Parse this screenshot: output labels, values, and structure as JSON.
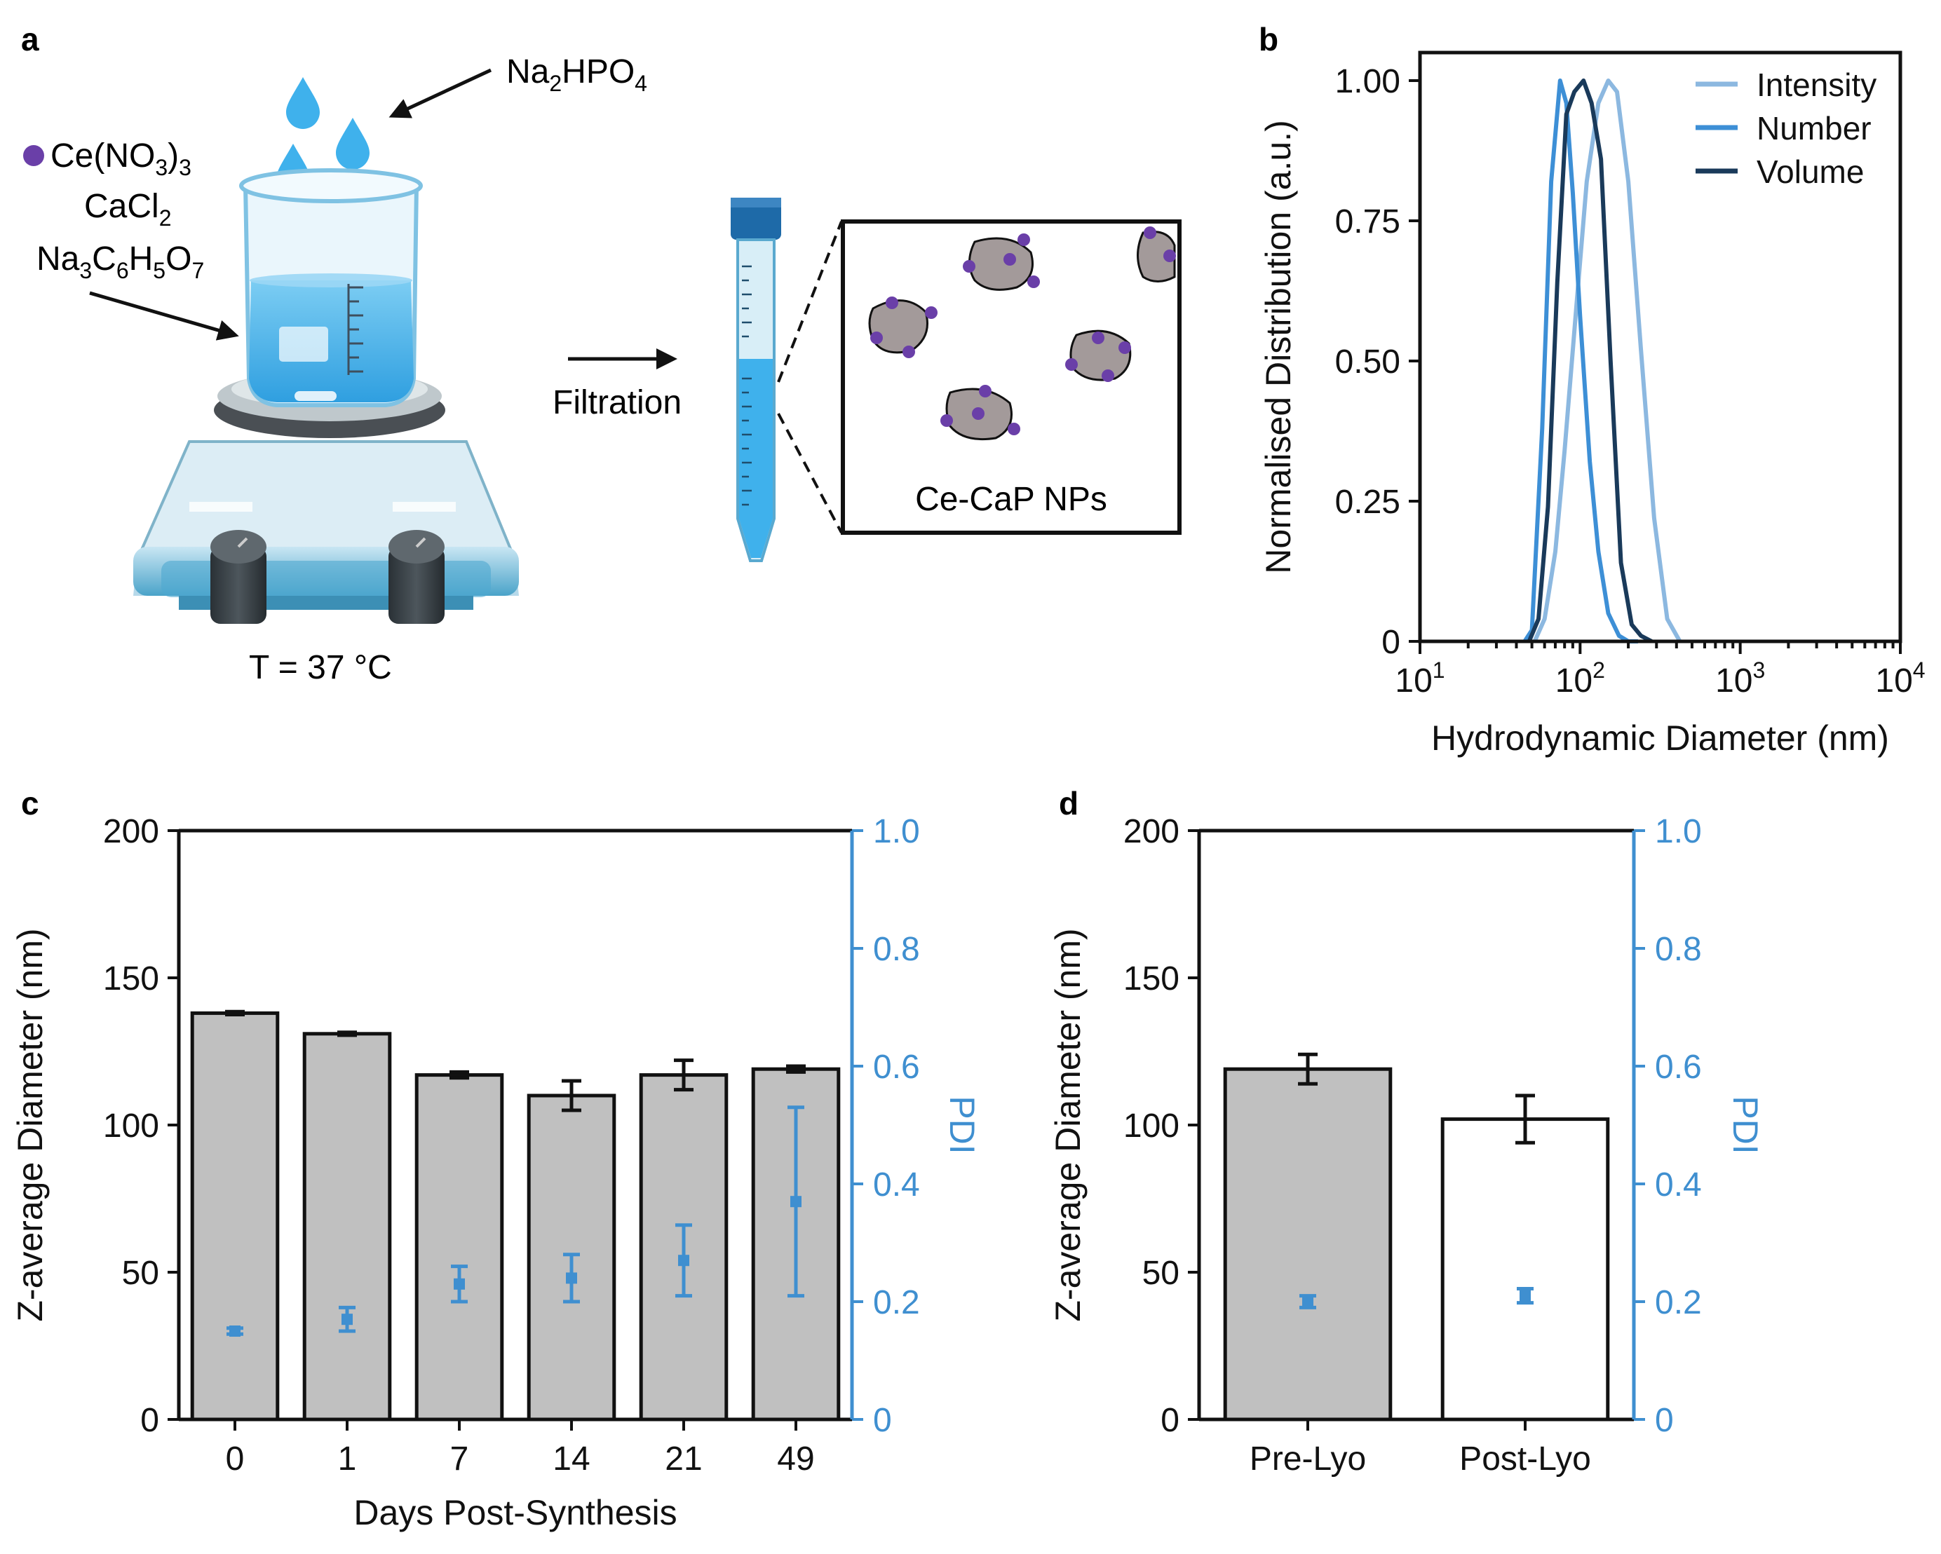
{
  "panels": {
    "a": {
      "label": "a",
      "reagent_top": {
        "base": "Na",
        "sub1": "2",
        "mid": "HPO",
        "sub2": "4"
      },
      "reagent_ce": {
        "base": "Ce(NO",
        "sub1": "3",
        "mid": ")",
        "sub2": "3"
      },
      "reagent_ca": {
        "base": "CaCl",
        "sub1": "2"
      },
      "reagent_cit": {
        "p1": "Na",
        "s1": "3",
        "p2": "C",
        "s2": "6",
        "p3": "H",
        "s3": "5",
        "p4": "O",
        "s4": "7"
      },
      "filtration_label": "Filtration",
      "temperature_label": "T = 37 °C",
      "nps_label": "Ce-CaP NPs"
    },
    "b": {
      "label": "b"
    },
    "c": {
      "label": "c"
    },
    "d": {
      "label": "d"
    }
  },
  "colors": {
    "intensity": "#8cb8e0",
    "number": "#3d8fd6",
    "volume": "#1a3a5a",
    "pdi_axis": "#3f8fd0",
    "bar_gray": "#c0c0c0",
    "liquid": "#3fb1ec",
    "particle": "#a39a9a",
    "dot": "#6a3fa8"
  },
  "chart_data": [
    {
      "id": "b",
      "type": "line",
      "title": "",
      "xlabel": "Hydrodynamic Diameter (nm)",
      "ylabel": "Normalised Distribution (a.u.)",
      "xscale": "log",
      "xlim": [
        10,
        10000
      ],
      "ylim": [
        0,
        1.05
      ],
      "xticks": [
        {
          "base": "10",
          "exp": "1"
        },
        {
          "base": "10",
          "exp": "2"
        },
        {
          "base": "10",
          "exp": "3"
        },
        {
          "base": "10",
          "exp": "4"
        }
      ],
      "yticks": [
        "0",
        "0.25",
        "0.50",
        "0.75",
        "1.00"
      ],
      "ytick_values": [
        0,
        0.25,
        0.5,
        0.75,
        1.0
      ],
      "legend_position": "top-right",
      "series": [
        {
          "name": "Intensity",
          "x": [
            52,
            60,
            70,
            80,
            95,
            110,
            130,
            150,
            170,
            200,
            240,
            290,
            350,
            420
          ],
          "y": [
            0,
            0.04,
            0.16,
            0.34,
            0.6,
            0.82,
            0.96,
            1.0,
            0.98,
            0.82,
            0.52,
            0.22,
            0.04,
            0
          ]
        },
        {
          "name": "Number",
          "x": [
            45,
            50,
            58,
            66,
            75,
            82,
            90,
            100,
            115,
            130,
            150,
            175,
            200,
            230
          ],
          "y": [
            0,
            0.02,
            0.38,
            0.82,
            1.0,
            0.96,
            0.8,
            0.58,
            0.32,
            0.16,
            0.05,
            0.01,
            0,
            0
          ]
        },
        {
          "name": "Volume",
          "x": [
            48,
            55,
            63,
            72,
            82,
            92,
            105,
            118,
            135,
            155,
            180,
            210,
            240,
            280
          ],
          "y": [
            0,
            0.04,
            0.24,
            0.64,
            0.94,
            0.98,
            1.0,
            0.96,
            0.86,
            0.5,
            0.14,
            0.03,
            0.01,
            0
          ]
        }
      ]
    },
    {
      "id": "c",
      "type": "bar",
      "title": "",
      "xlabel": "Days Post-Synthesis",
      "ylabel": "Z-average Diameter (nm)",
      "y2label": "PDI",
      "categories": [
        "0",
        "1",
        "7",
        "14",
        "21",
        "49"
      ],
      "ylim": [
        0,
        200
      ],
      "yticks": [
        "0",
        "50",
        "100",
        "150",
        "200"
      ],
      "ytick_values": [
        0,
        50,
        100,
        150,
        200
      ],
      "y2lim": [
        0,
        1.0
      ],
      "y2ticks": [
        "0",
        "0.2",
        "0.4",
        "0.6",
        "0.8",
        "1.0"
      ],
      "y2tick_values": [
        0,
        0.2,
        0.4,
        0.6,
        0.8,
        1.0
      ],
      "series": [
        {
          "name": "Z-average",
          "axis": "left",
          "values": [
            138,
            131,
            117,
            110,
            117,
            119
          ],
          "errors": [
            0.5,
            0.5,
            1,
            5,
            5,
            1
          ]
        },
        {
          "name": "PDI",
          "axis": "right",
          "values": [
            0.15,
            0.17,
            0.23,
            0.24,
            0.27,
            0.37
          ],
          "errors": [
            0.005,
            0.02,
            0.03,
            0.04,
            0.06,
            0.16
          ]
        }
      ]
    },
    {
      "id": "d",
      "type": "bar",
      "title": "",
      "xlabel": "",
      "ylabel": "Z-average Diameter (nm)",
      "y2label": "PDI",
      "categories": [
        "Pre-Lyo",
        "Post-Lyo"
      ],
      "ylim": [
        0,
        200
      ],
      "yticks": [
        "0",
        "50",
        "100",
        "150",
        "200"
      ],
      "ytick_values": [
        0,
        50,
        100,
        150,
        200
      ],
      "y2lim": [
        0,
        1.0
      ],
      "y2ticks": [
        "0",
        "0.2",
        "0.4",
        "0.6",
        "0.8",
        "1.0"
      ],
      "y2tick_values": [
        0,
        0.2,
        0.4,
        0.6,
        0.8,
        1.0
      ],
      "bar_fills": [
        "gray",
        "white"
      ],
      "series": [
        {
          "name": "Z-average",
          "axis": "left",
          "values": [
            119,
            102
          ],
          "errors": [
            5,
            8
          ]
        },
        {
          "name": "PDI",
          "axis": "right",
          "values": [
            0.2,
            0.21
          ],
          "errors": [
            0.01,
            0.012
          ]
        }
      ]
    }
  ]
}
